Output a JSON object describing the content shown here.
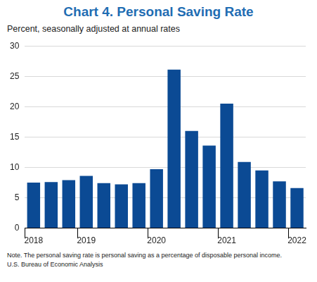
{
  "chart_data": {
    "type": "bar",
    "title": "Chart 4. Personal Saving Rate",
    "subtitle": "Percent, seasonally adjusted at annual rates",
    "annotations": [
      "Note. The personal saving rate is personal saving as a percentage of disposable personal income.",
      "U.S. Bureau of Economic Analysis"
    ],
    "categories": [
      "2018",
      null,
      null,
      "2019",
      null,
      null,
      null,
      "2020",
      null,
      null,
      null,
      "2021",
      null,
      null,
      null,
      "2022"
    ],
    "values": [
      7.5,
      7.6,
      7.9,
      8.6,
      7.4,
      7.2,
      7.4,
      9.7,
      26.1,
      16.0,
      13.6,
      20.5,
      10.9,
      9.5,
      7.7,
      6.6
    ],
    "color": "#0b4a94",
    "ylim": [
      0,
      30
    ],
    "yticks": [
      0,
      5,
      10,
      15,
      20,
      25,
      30
    ],
    "grid": true
  }
}
